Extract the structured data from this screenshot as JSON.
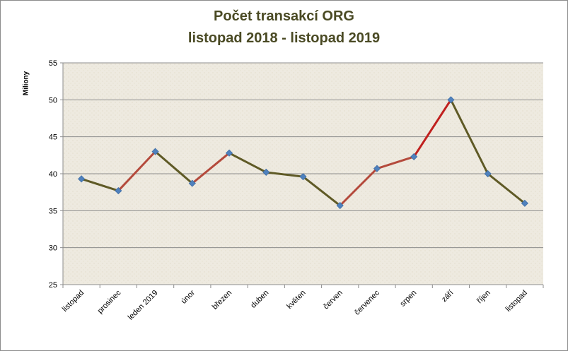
{
  "chart_data": {
    "type": "line",
    "title": "Počet transakcí ORG",
    "subtitle": "listopad  2018 - listopad 2019",
    "ylabel": "Miliony",
    "xlabel": "",
    "ylim": [
      25,
      55
    ],
    "yticks": [
      "25",
      "30",
      "35",
      "40",
      "45",
      "50",
      "55"
    ],
    "grid": true,
    "categories": [
      "listopad",
      "prosinec",
      "leden 2019",
      "únor",
      "březen",
      "duben",
      "květen",
      "červen",
      "červenec",
      "srpen",
      "září",
      "říjen",
      "listopad"
    ],
    "values": [
      39.3,
      37.7,
      43.0,
      38.7,
      42.8,
      40.2,
      39.6,
      35.7,
      40.7,
      42.3,
      50.0,
      40.0,
      36.0
    ],
    "colors": {
      "plot_background": "#eeeae0",
      "gridline": "#8c8c8c",
      "marker": "#4f81bd",
      "line_rising": "#b44a3c",
      "line_falling": "#5f5a26",
      "line_peak": "#c0201e",
      "title": "#4a4a24"
    }
  }
}
